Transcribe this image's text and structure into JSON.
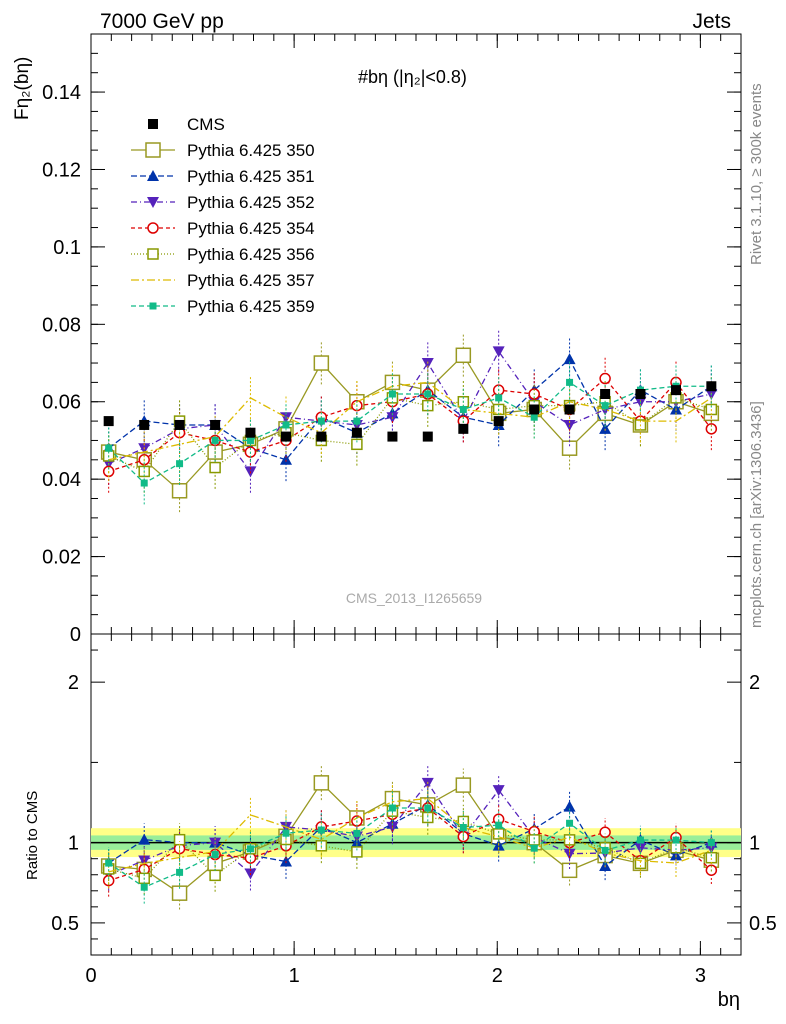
{
  "header": {
    "left": "7000 GeV pp",
    "right": "Jets"
  },
  "side": {
    "rivet": "Rivet 3.1.10, ≥ 300k events",
    "mcplots": "mcplots.cern.ch [arXiv:1306.3436]"
  },
  "watermark": "CMS_2013_I1265659",
  "chart_data": {
    "type": "scatter",
    "title": "#bη (|η₂|<0.8)",
    "ylabel": "Fη₂(bη)",
    "xlabel": "bη",
    "ratio_ylabel": "Ratio to CMS",
    "xlim": [
      0,
      3.2
    ],
    "ylim": [
      0,
      0.155
    ],
    "ratio_ylim": [
      0.3,
      2.3
    ],
    "x_ticks": [
      "0",
      "1",
      "2",
      "3"
    ],
    "y_ticks": [
      "0",
      "0.02",
      "0.04",
      "0.06",
      "0.08",
      "0.1",
      "0.12",
      "0.14"
    ],
    "ratio_ticks": [
      "0.5",
      "1",
      "2"
    ],
    "legend_position": "top-left",
    "x": [
      0.087,
      0.262,
      0.436,
      0.611,
      0.785,
      0.96,
      1.134,
      1.309,
      1.484,
      1.658,
      1.833,
      2.007,
      2.182,
      2.356,
      2.531,
      2.705,
      2.88,
      3.054
    ],
    "series": [
      {
        "name": "CMS",
        "color": "#000000",
        "marker": "filled-square",
        "dash": "none",
        "values": [
          0.055,
          0.054,
          0.054,
          0.054,
          0.052,
          0.051,
          0.051,
          0.052,
          0.051,
          0.051,
          0.053,
          0.055,
          0.058,
          0.058,
          0.062,
          0.062,
          0.063,
          0.064
        ]
      },
      {
        "name": "Pythia 6.425 350",
        "color": "#999922",
        "marker": "open-square",
        "dash": "solid",
        "values": [
          0.047,
          0.045,
          0.037,
          0.047,
          0.049,
          0.053,
          0.07,
          0.06,
          0.065,
          0.063,
          0.072,
          0.057,
          0.058,
          0.048,
          0.057,
          0.054,
          0.06,
          0.057
        ]
      },
      {
        "name": "Pythia 6.425 351",
        "color": "#0033aa",
        "marker": "filled-triangle-up",
        "dash": "6,3",
        "values": [
          0.048,
          0.055,
          0.054,
          0.054,
          0.048,
          0.045,
          0.056,
          0.052,
          0.057,
          0.063,
          0.056,
          0.054,
          0.063,
          0.071,
          0.053,
          0.063,
          0.058,
          0.064
        ]
      },
      {
        "name": "Pythia 6.425 352",
        "color": "#5522bb",
        "marker": "filled-triangle-down",
        "dash": "6,3,1,3",
        "values": [
          0.044,
          0.048,
          0.053,
          0.054,
          0.042,
          0.056,
          0.055,
          0.054,
          0.056,
          0.07,
          0.055,
          0.073,
          0.06,
          0.054,
          0.058,
          0.06,
          0.06,
          0.062
        ]
      },
      {
        "name": "Pythia 6.425 354",
        "color": "#dd0000",
        "marker": "open-circle",
        "dash": "4,3",
        "values": [
          0.042,
          0.045,
          0.052,
          0.05,
          0.047,
          0.05,
          0.056,
          0.059,
          0.06,
          0.062,
          0.055,
          0.063,
          0.062,
          0.058,
          0.066,
          0.055,
          0.065,
          0.053
        ]
      },
      {
        "name": "Pythia 6.425 356",
        "color": "#889900",
        "marker": "open-square-small",
        "dash": "1,2",
        "values": [
          0.046,
          0.042,
          0.055,
          0.043,
          0.05,
          0.052,
          0.05,
          0.049,
          0.061,
          0.059,
          0.06,
          0.058,
          0.059,
          0.059,
          0.06,
          0.054,
          0.061,
          0.058
        ]
      },
      {
        "name": "Pythia 6.425 357",
        "color": "#ddbb00",
        "marker": "none",
        "dash": "8,3,2,3",
        "values": [
          0.045,
          0.047,
          0.049,
          0.051,
          0.061,
          0.056,
          0.052,
          0.06,
          0.064,
          0.065,
          0.058,
          0.057,
          0.056,
          0.06,
          0.058,
          0.055,
          0.055,
          0.061
        ]
      },
      {
        "name": "Pythia 6.425 359",
        "color": "#11bb88",
        "marker": "filled-square-small",
        "dash": "5,3",
        "values": [
          0.048,
          0.039,
          0.044,
          0.05,
          0.05,
          0.054,
          0.055,
          0.055,
          0.062,
          0.062,
          0.058,
          0.061,
          0.056,
          0.065,
          0.059,
          0.063,
          0.064,
          0.064
        ]
      }
    ]
  }
}
